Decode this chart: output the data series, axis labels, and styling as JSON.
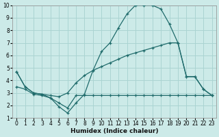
{
  "xlabel": "Humidex (Indice chaleur)",
  "bg_color": "#cceae8",
  "line_color": "#1f6b6b",
  "grid_color": "#aad4d2",
  "xlim": [
    -0.5,
    23.5
  ],
  "ylim": [
    1,
    10
  ],
  "xticks": [
    0,
    1,
    2,
    3,
    4,
    5,
    6,
    7,
    8,
    9,
    10,
    11,
    12,
    13,
    14,
    15,
    16,
    17,
    18,
    19,
    20,
    21,
    22,
    23
  ],
  "yticks": [
    1,
    2,
    3,
    4,
    5,
    6,
    7,
    8,
    9,
    10
  ],
  "line1_x": [
    0,
    1,
    2,
    3,
    4,
    5,
    6,
    7,
    8,
    9,
    10,
    11,
    12,
    13,
    14,
    15,
    16,
    17,
    18,
    19,
    20,
    21,
    22,
    23
  ],
  "line1_y": [
    4.7,
    3.5,
    3.0,
    2.9,
    2.6,
    1.9,
    1.4,
    2.2,
    2.9,
    4.8,
    6.3,
    7.0,
    8.2,
    9.3,
    10.0,
    10.0,
    10.0,
    9.7,
    8.5,
    7.0,
    4.3,
    4.3,
    3.3,
    2.8
  ],
  "line2_x": [
    0,
    1,
    2,
    3,
    4,
    5,
    6,
    7,
    8,
    9,
    10,
    11,
    12,
    13,
    14,
    15,
    16,
    17,
    18,
    19,
    20,
    21,
    22,
    23
  ],
  "line2_y": [
    4.7,
    3.5,
    3.0,
    2.9,
    2.8,
    2.7,
    3.0,
    3.8,
    4.4,
    4.8,
    5.1,
    5.4,
    5.7,
    6.0,
    6.2,
    6.4,
    6.6,
    6.8,
    7.0,
    7.0,
    4.3,
    4.3,
    3.3,
    2.8
  ],
  "line3_x": [
    0,
    1,
    2,
    3,
    4,
    5,
    6,
    7,
    8,
    9,
    10,
    11,
    12,
    13,
    14,
    15,
    16,
    17,
    18,
    19,
    20,
    21,
    22,
    23
  ],
  "line3_y": [
    3.5,
    3.3,
    2.9,
    2.8,
    2.6,
    2.2,
    1.8,
    2.8,
    2.8,
    2.8,
    2.8,
    2.8,
    2.8,
    2.8,
    2.8,
    2.8,
    2.8,
    2.8,
    2.8,
    2.8,
    2.8,
    2.8,
    2.8,
    2.8
  ]
}
